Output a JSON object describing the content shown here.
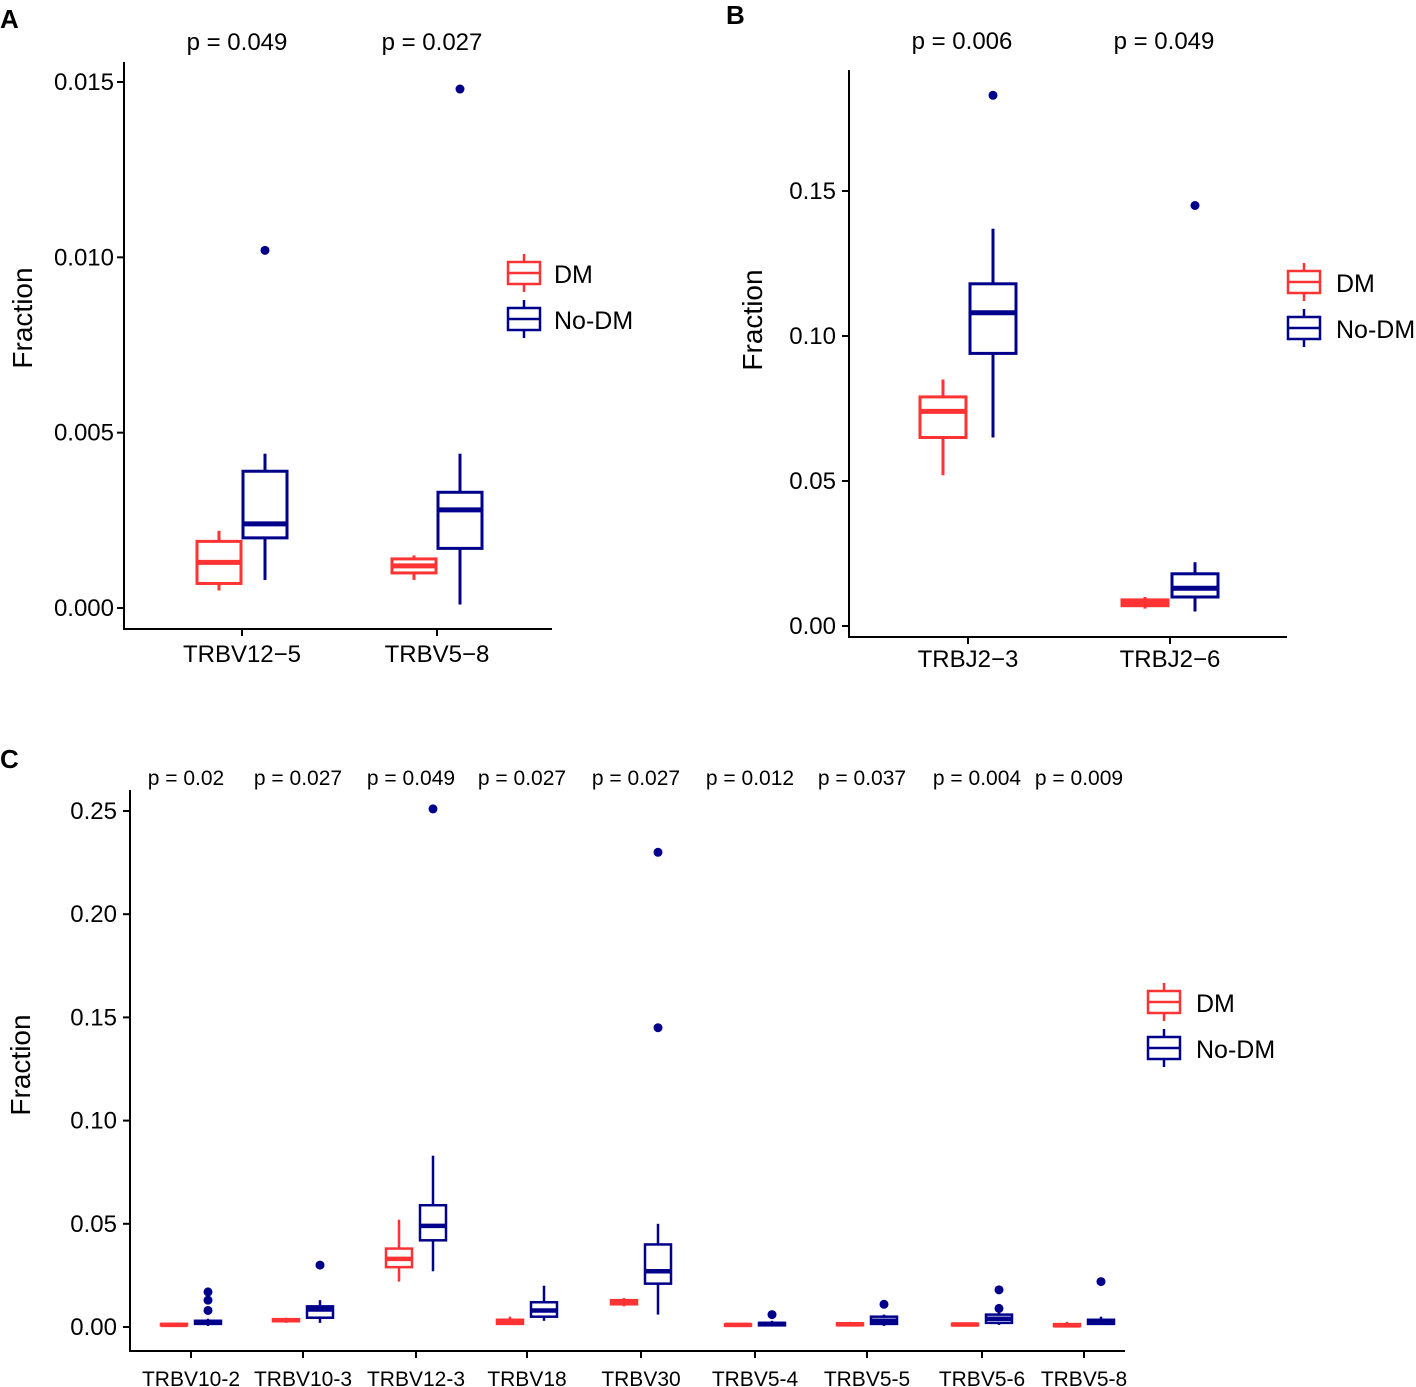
{
  "legend": {
    "items": [
      {
        "label": "DM",
        "color": "#ff3333"
      },
      {
        "label": "No-DM",
        "color": "#00008b"
      }
    ]
  },
  "chart_data": [
    {
      "type": "boxplot",
      "panel": "A",
      "ylabel": "Fraction",
      "ylim": [
        0,
        0.0155
      ],
      "yticks": [
        0,
        0.005,
        0.01,
        0.015
      ],
      "ytick_labels": [
        "0.000",
        "0.005",
        "0.010",
        "0.015"
      ],
      "categories": [
        "TRBV12−5",
        "TRBV5−8"
      ],
      "pvalues": [
        "p = 0.049",
        "p = 0.027"
      ],
      "series": [
        {
          "name": "DM",
          "boxes": [
            {
              "min": 0.0005,
              "q1": 0.0007,
              "median": 0.0013,
              "q3": 0.0019,
              "max": 0.0022,
              "outliers": []
            },
            {
              "min": 0.0008,
              "q1": 0.001,
              "median": 0.0012,
              "q3": 0.0014,
              "max": 0.0015,
              "outliers": []
            }
          ]
        },
        {
          "name": "No-DM",
          "boxes": [
            {
              "min": 0.0008,
              "q1": 0.002,
              "median": 0.0024,
              "q3": 0.0039,
              "max": 0.0044,
              "outliers": [
                0.0102
              ]
            },
            {
              "min": 0.0001,
              "q1": 0.0017,
              "median": 0.0028,
              "q3": 0.0033,
              "max": 0.0044,
              "outliers": [
                0.0148
              ]
            }
          ]
        }
      ]
    },
    {
      "type": "boxplot",
      "panel": "B",
      "ylabel": "Fraction",
      "ylim": [
        0,
        0.19
      ],
      "yticks": [
        0,
        0.05,
        0.1,
        0.15
      ],
      "ytick_labels": [
        "0.00",
        "0.05",
        "0.10",
        "0.15"
      ],
      "categories": [
        "TRBJ2−3",
        "TRBJ2−6"
      ],
      "pvalues": [
        "p = 0.006",
        "p = 0.049"
      ],
      "series": [
        {
          "name": "DM",
          "boxes": [
            {
              "min": 0.052,
              "q1": 0.065,
              "median": 0.074,
              "q3": 0.079,
              "max": 0.085,
              "outliers": []
            },
            {
              "min": 0.006,
              "q1": 0.007,
              "median": 0.008,
              "q3": 0.009,
              "max": 0.01,
              "outliers": []
            }
          ]
        },
        {
          "name": "No-DM",
          "boxes": [
            {
              "min": 0.065,
              "q1": 0.094,
              "median": 0.108,
              "q3": 0.118,
              "max": 0.137,
              "outliers": [
                0.183
              ]
            },
            {
              "min": 0.005,
              "q1": 0.01,
              "median": 0.013,
              "q3": 0.018,
              "max": 0.022,
              "outliers": [
                0.145
              ]
            }
          ]
        }
      ]
    },
    {
      "type": "boxplot",
      "panel": "C",
      "ylabel": "Fraction",
      "ylim": [
        0,
        0.255
      ],
      "yticks": [
        0,
        0.05,
        0.1,
        0.15,
        0.2,
        0.25
      ],
      "ytick_labels": [
        "0.00",
        "0.05",
        "0.10",
        "0.15",
        "0.20",
        "0.25"
      ],
      "categories": [
        "TRBV10-2",
        "TRBV10-3",
        "TRBV12-3",
        "TRBV18",
        "TRBV30",
        "TRBV5-4",
        "TRBV5-5",
        "TRBV5-6",
        "TRBV5-8"
      ],
      "pvalues": [
        "p = 0.02",
        "p = 0.027",
        "p = 0.049",
        "p = 0.027",
        "p = 0.027",
        "p = 0.012",
        "p = 0.037",
        "p = 0.004",
        "p = 0.009"
      ],
      "series": [
        {
          "name": "DM",
          "boxes": [
            {
              "min": 0.0005,
              "q1": 0.0008,
              "median": 0.001,
              "q3": 0.0015,
              "max": 0.002,
              "outliers": []
            },
            {
              "min": 0.002,
              "q1": 0.0028,
              "median": 0.0033,
              "q3": 0.0038,
              "max": 0.0045,
              "outliers": []
            },
            {
              "min": 0.022,
              "q1": 0.029,
              "median": 0.033,
              "q3": 0.038,
              "max": 0.052,
              "outliers": []
            },
            {
              "min": 0.001,
              "q1": 0.0015,
              "median": 0.0025,
              "q3": 0.0035,
              "max": 0.005,
              "outliers": []
            },
            {
              "min": 0.01,
              "q1": 0.011,
              "median": 0.012,
              "q3": 0.013,
              "max": 0.014,
              "outliers": []
            },
            {
              "min": 0.0003,
              "q1": 0.0006,
              "median": 0.001,
              "q3": 0.0013,
              "max": 0.002,
              "outliers": []
            },
            {
              "min": 0.0005,
              "q1": 0.0009,
              "median": 0.0013,
              "q3": 0.0018,
              "max": 0.0025,
              "outliers": []
            },
            {
              "min": 0.0005,
              "q1": 0.0008,
              "median": 0.0012,
              "q3": 0.0016,
              "max": 0.002,
              "outliers": []
            },
            {
              "min": 0.0002,
              "q1": 0.0004,
              "median": 0.0008,
              "q3": 0.0014,
              "max": 0.0025,
              "outliers": []
            }
          ]
        },
        {
          "name": "No-DM",
          "boxes": [
            {
              "min": 0.0005,
              "q1": 0.0015,
              "median": 0.0025,
              "q3": 0.003,
              "max": 0.004,
              "outliers": [
                0.008,
                0.013,
                0.017
              ]
            },
            {
              "min": 0.002,
              "q1": 0.0045,
              "median": 0.0085,
              "q3": 0.01,
              "max": 0.013,
              "outliers": [
                0.03
              ]
            },
            {
              "min": 0.027,
              "q1": 0.042,
              "median": 0.049,
              "q3": 0.059,
              "max": 0.083,
              "outliers": [
                0.251
              ]
            },
            {
              "min": 0.003,
              "q1": 0.005,
              "median": 0.008,
              "q3": 0.012,
              "max": 0.02,
              "outliers": []
            },
            {
              "min": 0.006,
              "q1": 0.021,
              "median": 0.027,
              "q3": 0.04,
              "max": 0.05,
              "outliers": [
                0.145,
                0.23
              ]
            },
            {
              "min": 0.0003,
              "q1": 0.0008,
              "median": 0.0015,
              "q3": 0.002,
              "max": 0.003,
              "outliers": [
                0.006
              ]
            },
            {
              "min": 0.0005,
              "q1": 0.0015,
              "median": 0.003,
              "q3": 0.005,
              "max": 0.006,
              "outliers": [
                0.011
              ]
            },
            {
              "min": 0.001,
              "q1": 0.002,
              "median": 0.004,
              "q3": 0.006,
              "max": 0.007,
              "outliers": [
                0.009,
                0.018
              ]
            },
            {
              "min": 0.001,
              "q1": 0.0015,
              "median": 0.0025,
              "q3": 0.0035,
              "max": 0.005,
              "outliers": [
                0.022
              ]
            }
          ]
        }
      ]
    }
  ]
}
